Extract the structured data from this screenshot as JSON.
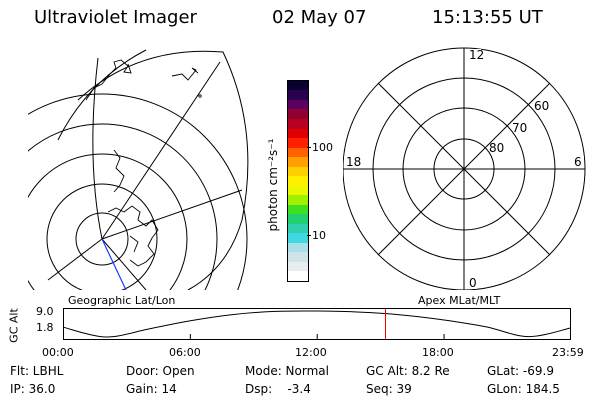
{
  "header": {
    "instrument": "Ultraviolet Imager",
    "date": "02 May 07",
    "time": "15:13:55 UT"
  },
  "colorbar": {
    "label": "photon cm⁻²s⁻¹",
    "ticks": [
      "100",
      "10"
    ],
    "colors": [
      "#ffffff",
      "#e8eef0",
      "#cfe3e8",
      "#a8e0e8",
      "#40d8e0",
      "#2fd0b0",
      "#20d070",
      "#40e020",
      "#a0f000",
      "#e8f800",
      "#fff000",
      "#ffd000",
      "#ffa000",
      "#ff6000",
      "#ff2000",
      "#e00000",
      "#b80020",
      "#900030",
      "#5a0060",
      "#2a0050",
      "#0a0030"
    ]
  },
  "geographic_map": {
    "label": "Geographic Lat/Lon"
  },
  "polar_plot": {
    "label": "Apex MLat/MLT",
    "mlt_labels": {
      "top": "12",
      "left": "18",
      "right": "6",
      "bottom": "0"
    },
    "lat_labels": [
      "60",
      "70",
      "80"
    ]
  },
  "altitude_plot": {
    "ylabel": "GC Alt",
    "yticks": [
      "9.0",
      "1.8"
    ],
    "xticks": [
      "00:00",
      "06:00",
      "12:00",
      "18:00",
      "23:59"
    ],
    "current_time_marker_hours": 15.23
  },
  "info": {
    "filter": "Flt: LBHL",
    "door": "Door: Open",
    "mode": "Mode: Normal",
    "gc_alt": "GC Alt: 8.2 Re",
    "glat": "GLat: -69.9",
    "ip": "IP: 36.0",
    "gain": "Gain: 14",
    "dsp": "Dsp:    -3.4",
    "seq": "Seq: 39",
    "glon": "GLon: 184.5"
  },
  "chart_data": {
    "type": "line",
    "title": "",
    "xlabel": "",
    "ylabel": "GC Alt",
    "x": [
      0,
      2,
      4,
      6,
      8,
      10,
      12,
      14,
      16,
      18,
      20,
      22,
      23.98
    ],
    "series": [
      {
        "values": [
          4.5,
          1.8,
          4.0,
          6.3,
          8.0,
          8.9,
          9.0,
          8.7,
          7.9,
          6.5,
          4.6,
          1.9,
          4.3
        ]
      }
    ],
    "ylim": [
      1.8,
      9.0
    ],
    "xlim": [
      0,
      23.98
    ]
  }
}
